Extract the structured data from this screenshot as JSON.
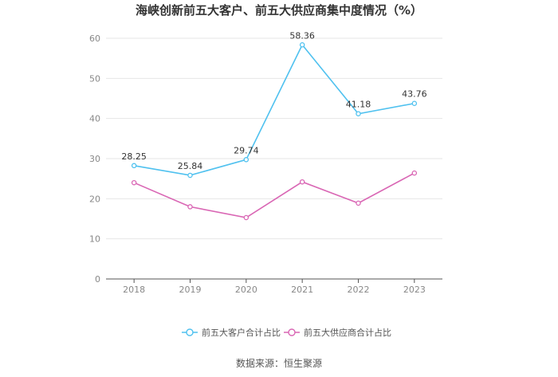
{
  "chart_data": {
    "type": "line",
    "title": "海峡创新前五大客户、前五大供应商集中度情况（%）",
    "categories": [
      "2018",
      "2019",
      "2020",
      "2021",
      "2022",
      "2023"
    ],
    "ylim": [
      0,
      60
    ],
    "yticks": [
      0,
      10,
      20,
      30,
      40,
      50,
      60
    ],
    "grid": true,
    "legend_position": "bottom",
    "series": [
      {
        "name": "前五大客户合计占比",
        "color": "#4fc1ef",
        "values": [
          28.25,
          25.84,
          29.74,
          58.36,
          41.18,
          43.76
        ],
        "labels": [
          "28.25",
          "25.84",
          "29.74",
          "58.36",
          "41.18",
          "43.76"
        ]
      },
      {
        "name": "前五大供应商合计占比",
        "color": "#d966b4",
        "values": [
          24.0,
          18.0,
          15.3,
          24.2,
          18.9,
          26.4
        ],
        "labels": []
      }
    ]
  },
  "source": "数据来源：恒生聚源"
}
